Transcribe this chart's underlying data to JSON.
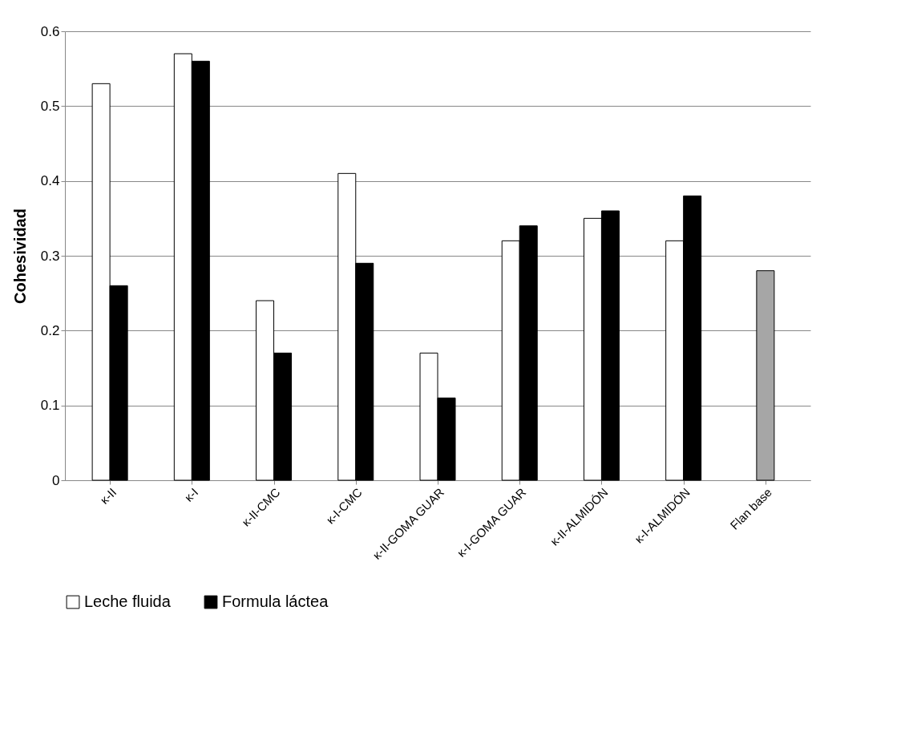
{
  "chart_data": {
    "type": "bar",
    "ylabel": "Cohesividad",
    "categories": [
      "κ-II",
      "κ-I",
      "κ-II-CMC",
      "κ-I-CMC",
      "κ-II-GOMA GUAR",
      "κ-I-GOMA GUAR",
      "κ-II-ALMIDÓN",
      "κ-I-ALMIDÓN",
      "Flan base"
    ],
    "series": [
      {
        "name": "Leche fluida",
        "color": "#ffffff",
        "values": [
          0.53,
          0.57,
          0.24,
          0.41,
          0.17,
          0.32,
          0.35,
          0.32,
          null
        ]
      },
      {
        "name": "Formula láctea",
        "color": "#000000",
        "values": [
          0.26,
          0.56,
          0.17,
          0.29,
          0.11,
          0.34,
          0.36,
          0.38,
          null
        ]
      },
      {
        "color": "#a6a6a6",
        "values": [
          null,
          null,
          null,
          null,
          null,
          null,
          null,
          null,
          0.28
        ]
      }
    ],
    "ylim": [
      0,
      0.6
    ],
    "yticks": [
      0,
      0.1,
      0.2,
      0.3,
      0.4,
      0.5,
      0.6
    ],
    "grid": "y",
    "legend": "bottom"
  }
}
